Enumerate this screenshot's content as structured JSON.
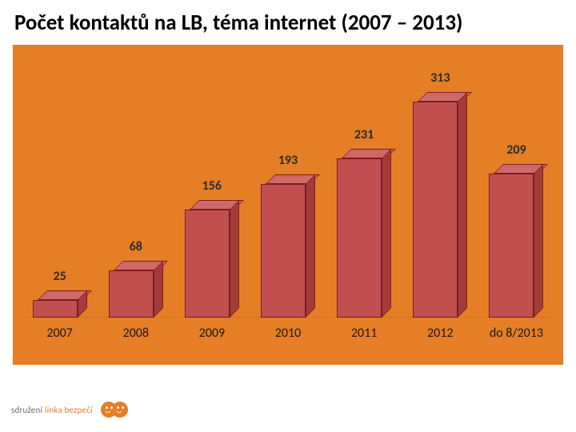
{
  "title": "Počet kontaktů na LB, téma internet (2007 – 2013)",
  "chart": {
    "type": "bar",
    "background_color": "#e57e25",
    "bar_front_color": "#c14f4f",
    "bar_top_color": "#d06a6a",
    "bar_side_color": "#a33b3b",
    "bar_border_color": "#7a1d1d",
    "value_label_color": "#2a2a2a",
    "value_label_fontsize": 16,
    "tick_label_color": "#1a1a1a",
    "tick_label_fontsize": 16,
    "ymax": 350,
    "bar_front_width": 56,
    "bar_depth": 12,
    "categories": [
      "2007",
      "2008",
      "2009",
      "2010",
      "2011",
      "2012",
      "do 8/2013"
    ],
    "values": [
      25,
      68,
      156,
      193,
      231,
      313,
      209
    ]
  },
  "logo": {
    "text_plain": "sdružení ",
    "text_accent": "linka bezpečí",
    "brand_color": "#e57e25"
  }
}
